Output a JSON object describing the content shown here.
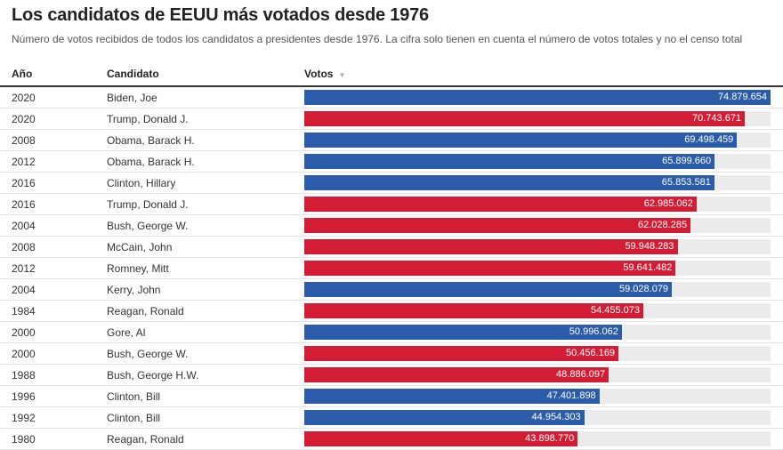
{
  "title": "Los candidatos de EEUU más votados desde 1976",
  "subtitle": "Número de votos recibidos de todos los candidatos a presidentes desde 1976. La cifra solo tienen en cuenta el número de votos totales y no el censo total",
  "columns": {
    "year": "Año",
    "candidate": "Candidato",
    "votes": "Votos",
    "sort_icon": "▼"
  },
  "colors": {
    "democrat": "#2a5caa",
    "republican": "#d31d34",
    "track": "#ebebeb"
  },
  "chart_data": {
    "type": "table",
    "xlim": [
      0,
      74879654
    ],
    "rows": [
      {
        "year": "2020",
        "candidate": "Biden, Joe",
        "votes": 74879654,
        "label": "74.879.654",
        "party": "democrat"
      },
      {
        "year": "2020",
        "candidate": "Trump, Donald J.",
        "votes": 70743671,
        "label": "70.743.671",
        "party": "republican"
      },
      {
        "year": "2008",
        "candidate": "Obama, Barack H.",
        "votes": 69498459,
        "label": "69.498.459",
        "party": "democrat"
      },
      {
        "year": "2012",
        "candidate": "Obama, Barack H.",
        "votes": 65899660,
        "label": "65.899.660",
        "party": "democrat"
      },
      {
        "year": "2016",
        "candidate": "Clinton, Hillary",
        "votes": 65853581,
        "label": "65.853.581",
        "party": "democrat"
      },
      {
        "year": "2016",
        "candidate": "Trump, Donald J.",
        "votes": 62985062,
        "label": "62.985.062",
        "party": "republican"
      },
      {
        "year": "2004",
        "candidate": "Bush, George W.",
        "votes": 62028285,
        "label": "62.028.285",
        "party": "republican"
      },
      {
        "year": "2008",
        "candidate": "McCain, John",
        "votes": 59948283,
        "label": "59.948.283",
        "party": "republican"
      },
      {
        "year": "2012",
        "candidate": "Romney, Mitt",
        "votes": 59641482,
        "label": "59.641.482",
        "party": "republican"
      },
      {
        "year": "2004",
        "candidate": "Kerry, John",
        "votes": 59028079,
        "label": "59.028.079",
        "party": "democrat"
      },
      {
        "year": "1984",
        "candidate": "Reagan, Ronald",
        "votes": 54455073,
        "label": "54.455.073",
        "party": "republican"
      },
      {
        "year": "2000",
        "candidate": "Gore, Al",
        "votes": 50996062,
        "label": "50.996.062",
        "party": "democrat"
      },
      {
        "year": "2000",
        "candidate": "Bush, George W.",
        "votes": 50456169,
        "label": "50.456.169",
        "party": "republican"
      },
      {
        "year": "1988",
        "candidate": "Bush, George H.W.",
        "votes": 48886097,
        "label": "48.886.097",
        "party": "republican"
      },
      {
        "year": "1996",
        "candidate": "Clinton, Bill",
        "votes": 47401898,
        "label": "47.401.898",
        "party": "democrat"
      },
      {
        "year": "1992",
        "candidate": "Clinton, Bill",
        "votes": 44954303,
        "label": "44.954.303",
        "party": "democrat"
      },
      {
        "year": "1980",
        "candidate": "Reagan, Ronald",
        "votes": 43898770,
        "label": "43.898.770",
        "party": "republican"
      }
    ]
  }
}
